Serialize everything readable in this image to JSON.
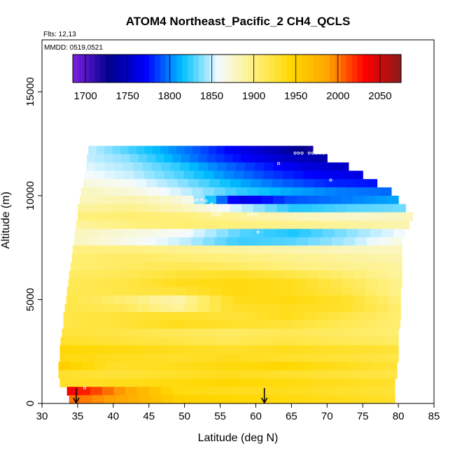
{
  "chart_data": {
    "type": "heatmap",
    "title": "ATOM4 Northeast_Pacific_2 CH4_QCLS",
    "flights_label": "Flts: 12,13",
    "dates_label": "MMDD: 0519,0521",
    "xlabel": "Latitude (deg N)",
    "ylabel": "Altitude (m)",
    "xlim": [
      30,
      85
    ],
    "ylim": [
      0,
      17500
    ],
    "x_ticks": [
      "30",
      "35",
      "40",
      "45",
      "50",
      "55",
      "60",
      "65",
      "70",
      "75",
      "80",
      "85"
    ],
    "y_ticks": [
      "0",
      "5000",
      "10000",
      "15000"
    ],
    "colorbar": {
      "range": [
        1685,
        2075
      ],
      "ticks": [
        "1700",
        "1750",
        "1800",
        "1850",
        "1900",
        "1950",
        "2000",
        "2050"
      ],
      "colors": [
        "#7d1fe0",
        "#00008b",
        "#0000ff",
        "#00bfff",
        "#f5fbff",
        "#fff07a",
        "#ffd700",
        "#ffa500",
        "#ff0000",
        "#8b1a1a"
      ]
    },
    "profile_arrows_lat": [
      34.8,
      61.2
    ],
    "layers": [
      {
        "alt": 12200,
        "lat": [
          36.5,
          68
        ],
        "values": [
          1850,
          1830,
          1810,
          1790,
          1765,
          1745,
          1720
        ]
      },
      {
        "alt": 11800,
        "lat": [
          36.3,
          70
        ],
        "values": [
          1850,
          1840,
          1815,
          1790,
          1770,
          1750,
          1740
        ]
      },
      {
        "alt": 11400,
        "lat": [
          36.2,
          73
        ],
        "values": [
          1855,
          1845,
          1825,
          1800,
          1780,
          1760,
          1750
        ]
      },
      {
        "alt": 11000,
        "lat": [
          36.0,
          75
        ],
        "values": [
          1860,
          1850,
          1830,
          1805,
          1785,
          1770,
          1760
        ]
      },
      {
        "alt": 10600,
        "lat": [
          35.8,
          77
        ],
        "values": [
          1870,
          1860,
          1840,
          1815,
          1795,
          1780,
          1775
        ]
      },
      {
        "alt": 10200,
        "lat": [
          35.5,
          79
        ],
        "values": [
          1880,
          1870,
          1850,
          1825,
          1810,
          1800,
          1795
        ]
      },
      {
        "alt": 9800,
        "lat": [
          35.3,
          80
        ],
        "values": [
          1880,
          1885,
          1870,
          1760,
          1790,
          1800,
          1810
        ]
      },
      {
        "alt": 9400,
        "lat": [
          35.0,
          81
        ],
        "values": [
          1890,
          1895,
          1880,
          1850,
          1820,
          1830,
          1835
        ]
      },
      {
        "alt": 9000,
        "lat": [
          35.0,
          82
        ],
        "values": [
          1900,
          1905,
          1900,
          1890,
          1880,
          1875,
          1880
        ]
      },
      {
        "alt": 8600,
        "lat": [
          34.8,
          81.5
        ],
        "values": [
          1890,
          1900,
          1905,
          1900,
          1895,
          1890,
          1885
        ]
      },
      {
        "alt": 8200,
        "lat": [
          34.6,
          81
        ],
        "values": [
          1880,
          1870,
          1860,
          1830,
          1820,
          1840,
          1860
        ]
      },
      {
        "alt": 7800,
        "lat": [
          34.5,
          80.5
        ],
        "values": [
          1880,
          1865,
          1850,
          1825,
          1830,
          1845,
          1870
        ]
      },
      {
        "alt": 7400,
        "lat": [
          34.3,
          80.5
        ],
        "values": [
          1900,
          1900,
          1895,
          1890,
          1885,
          1880,
          1880
        ]
      },
      {
        "alt": 7000,
        "lat": [
          34.2,
          80.5
        ],
        "values": [
          1905,
          1910,
          1905,
          1900,
          1895,
          1890,
          1885
        ]
      },
      {
        "alt": 6600,
        "lat": [
          34.0,
          80.5
        ],
        "values": [
          1905,
          1910,
          1915,
          1910,
          1900,
          1895,
          1890
        ]
      },
      {
        "alt": 6200,
        "lat": [
          33.8,
          80.5
        ],
        "values": [
          1910,
          1915,
          1925,
          1930,
          1920,
          1905,
          1890
        ]
      },
      {
        "alt": 5800,
        "lat": [
          33.7,
          80.5
        ],
        "values": [
          1915,
          1920,
          1935,
          1940,
          1935,
          1915,
          1895
        ]
      },
      {
        "alt": 5400,
        "lat": [
          33.5,
          80.3
        ],
        "values": [
          1915,
          1920,
          1925,
          1940,
          1935,
          1920,
          1895
        ]
      },
      {
        "alt": 5000,
        "lat": [
          33.4,
          80.3
        ],
        "values": [
          1920,
          1905,
          1885,
          1935,
          1940,
          1930,
          1900
        ]
      },
      {
        "alt": 4600,
        "lat": [
          33.2,
          80.3
        ],
        "values": [
          1920,
          1915,
          1890,
          1930,
          1935,
          1930,
          1905
        ]
      },
      {
        "alt": 4200,
        "lat": [
          33.0,
          80.3
        ],
        "values": [
          1920,
          1925,
          1930,
          1925,
          1935,
          1920,
          1905
        ]
      },
      {
        "alt": 3800,
        "lat": [
          33.0,
          80.2
        ],
        "values": [
          1920,
          1925,
          1935,
          1930,
          1925,
          1915,
          1905
        ]
      },
      {
        "alt": 3400,
        "lat": [
          32.8,
          80.0
        ],
        "values": [
          1925,
          1920,
          1915,
          1910,
          1915,
          1910,
          1905
        ]
      },
      {
        "alt": 3000,
        "lat": [
          32.6,
          80.0
        ],
        "values": [
          1930,
          1925,
          1920,
          1915,
          1920,
          1915,
          1910
        ]
      },
      {
        "alt": 2600,
        "lat": [
          32.5,
          80.0
        ],
        "values": [
          1945,
          1940,
          1935,
          1930,
          1935,
          1930,
          1925
        ]
      },
      {
        "alt": 2200,
        "lat": [
          32.5,
          80.0
        ],
        "values": [
          1940,
          1935,
          1930,
          1935,
          1930,
          1925,
          1920
        ]
      },
      {
        "alt": 1800,
        "lat": [
          32.3,
          79.8
        ],
        "values": [
          1955,
          1930,
          1935,
          1940,
          1945,
          1935,
          1925
        ]
      },
      {
        "alt": 1400,
        "lat": [
          32.3,
          79.8
        ],
        "values": [
          1930,
          1925,
          1930,
          1935,
          1930,
          1925,
          1920
        ]
      },
      {
        "alt": 1000,
        "lat": [
          32.5,
          79.5
        ],
        "values": [
          1930,
          1935,
          1940,
          1945,
          1940,
          1935,
          1930
        ]
      },
      {
        "alt": 600,
        "lat": [
          33.5,
          79.5
        ],
        "values": [
          2040,
          1990,
          1940,
          1935,
          1935,
          1930,
          1925
        ]
      },
      {
        "alt": 200,
        "lat": [
          33.8,
          79.5
        ],
        "values": [
          2005,
          1985,
          1950,
          1945,
          1940,
          1935,
          1930
        ]
      }
    ],
    "samples": [
      {
        "lat": 65.5,
        "alt": 12050
      },
      {
        "lat": 66.0,
        "alt": 12050
      },
      {
        "lat": 66.5,
        "alt": 12050
      },
      {
        "lat": 67.5,
        "alt": 12050
      },
      {
        "lat": 68.0,
        "alt": 12050
      },
      {
        "lat": 68.5,
        "alt": 12050
      },
      {
        "lat": 69.0,
        "alt": 12050
      },
      {
        "lat": 69.5,
        "alt": 12050
      },
      {
        "lat": 63.2,
        "alt": 11550
      },
      {
        "lat": 70.5,
        "alt": 10750
      },
      {
        "lat": 51.3,
        "alt": 9750
      },
      {
        "lat": 51.8,
        "alt": 9800
      },
      {
        "lat": 52.4,
        "alt": 9800
      },
      {
        "lat": 53.0,
        "alt": 9750
      },
      {
        "lat": 53.8,
        "alt": 9600
      },
      {
        "lat": 54.0,
        "alt": 9100
      },
      {
        "lat": 54.5,
        "alt": 9100
      },
      {
        "lat": 55.0,
        "alt": 9100
      },
      {
        "lat": 59.0,
        "alt": 9100
      },
      {
        "lat": 59.5,
        "alt": 9100
      },
      {
        "lat": 60.0,
        "alt": 9100
      },
      {
        "lat": 60.3,
        "alt": 8250
      },
      {
        "lat": 36.0,
        "alt": 750
      }
    ]
  }
}
